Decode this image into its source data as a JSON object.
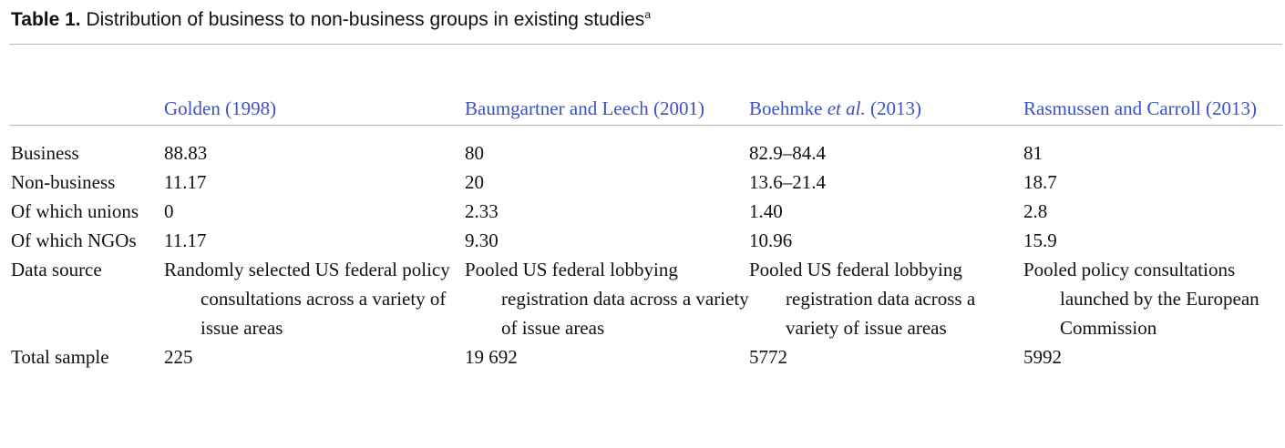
{
  "caption": {
    "label": "Table 1.",
    "text": " Distribution of business to non-business groups in existing studies",
    "footnote_mark": "a"
  },
  "header": {
    "col1": "Golden (1998)",
    "col2": "Baumgartner and Leech (2001)",
    "col3_pre": "Boehmke ",
    "col3_italic": "et al.",
    "col3_post": " (2013)",
    "col4": "Rasmussen and Carroll (2013)"
  },
  "rows": [
    {
      "label": "Business",
      "values": [
        "88.83",
        "80",
        "82.9–84.4",
        "81"
      ]
    },
    {
      "label": "Non-business",
      "values": [
        "11.17",
        "20",
        "13.6–21.4",
        "18.7"
      ]
    },
    {
      "label": "Of which unions",
      "values": [
        "0",
        "2.33",
        "1.40",
        "2.8"
      ]
    },
    {
      "label": "Of which NGOs",
      "values": [
        "11.17",
        "9.30",
        "10.96",
        "15.9"
      ]
    },
    {
      "label": "Data source",
      "values": [
        "Randomly selected US federal policy consultations across a variety of issue areas",
        "Pooled US federal lobbying registration data across a variety of issue areas",
        "Pooled US federal lobbying registration data across a variety of issue areas",
        "Pooled policy consultations launched by the European Commission"
      ]
    },
    {
      "label": "Total sample",
      "values": [
        "225",
        "19 692",
        "5772",
        "5992"
      ]
    }
  ]
}
